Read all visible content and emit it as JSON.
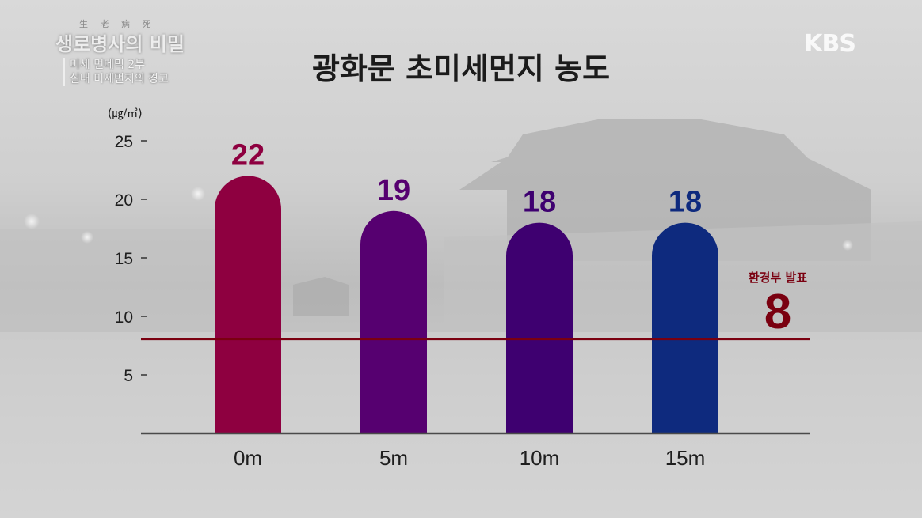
{
  "program": {
    "logo_small": "生 老 病 死",
    "logo_title": "생로병사의 비밀",
    "subtitle_line1": "미세 먼데믹 2부",
    "subtitle_line2": "실내 미세먼지의 경고"
  },
  "broadcaster": "KBS",
  "chart_data": {
    "type": "bar",
    "title": "광화문 초미세먼지 농도",
    "unit": "(㎍/㎥)",
    "categories": [
      "0m",
      "5m",
      "10m",
      "15m"
    ],
    "values": [
      22,
      19,
      18,
      18
    ],
    "value_labels": [
      "22",
      "19",
      "18",
      "18"
    ],
    "colors": [
      "#8e0040",
      "#560070",
      "#3e0070",
      "#0e2a7e"
    ],
    "yticks": [
      5,
      10,
      15,
      20,
      25
    ],
    "ylim": [
      0,
      25
    ],
    "reference_line": {
      "value": 8,
      "label": "환경부 발표",
      "value_label": "8",
      "color": "#7a0010"
    },
    "grid": false
  }
}
